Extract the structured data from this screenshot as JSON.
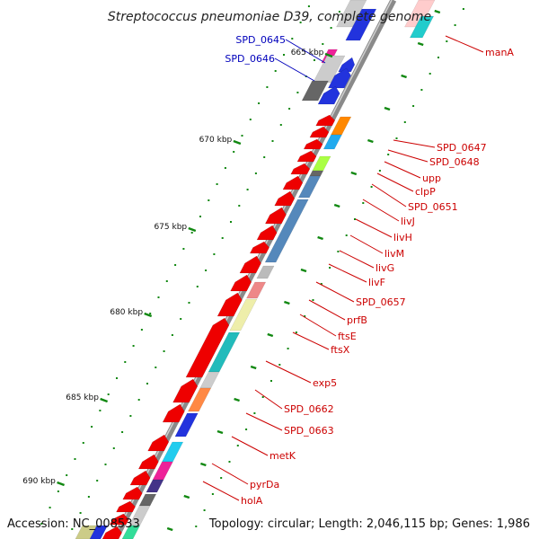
{
  "title": "Streptococcus pneumoniae D39, complete genome",
  "footer": {
    "accession": "Accession: NC_008533",
    "topology": "Topology: circular; Length: 2,046,115 bp; Genes: 1,986"
  },
  "kbp_marks": [
    "665 kbp",
    "670 kbp",
    "675 kbp",
    "680 kbp",
    "685 kbp",
    "690 kbp"
  ],
  "gene_labels_blue": [
    "SPD_0645",
    "SPD_0646"
  ],
  "gene_labels_red": [
    "manA",
    "SPD_0647",
    "SPD_0648",
    "upp",
    "clpP",
    "SPD_0651",
    "livJ",
    "livH",
    "livM",
    "livG",
    "livF",
    "SPD_0657",
    "prfB",
    "ftsE",
    "ftsX",
    "exp5",
    "SPD_0662",
    "SPD_0663",
    "metK",
    "pyrDa",
    "holA"
  ],
  "colors": {
    "backbone": "#808080",
    "forward_gene": "#ee0000",
    "tick_mark": "#118811",
    "label_red": "#cc0000",
    "label_blue": "#0000bb"
  }
}
